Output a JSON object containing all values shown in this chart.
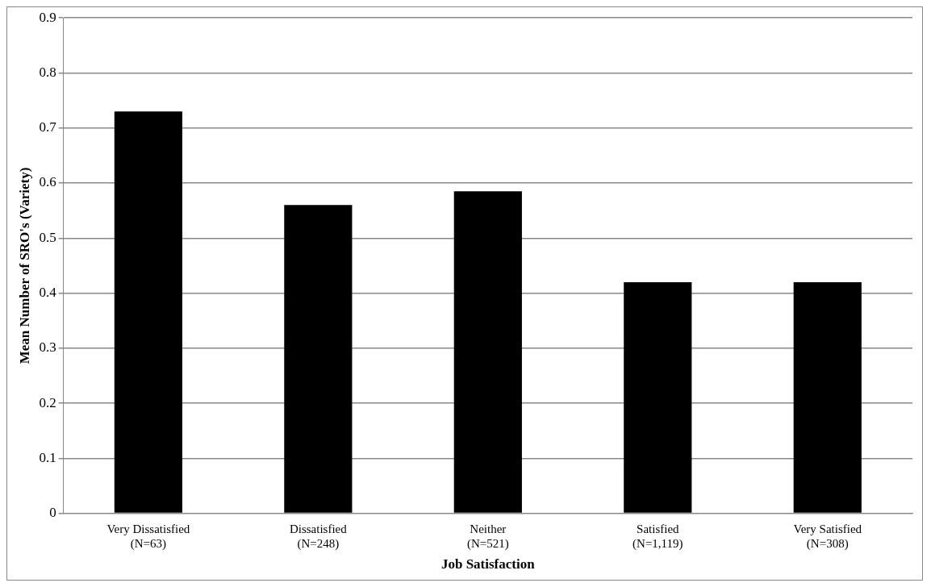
{
  "chart_data": {
    "type": "bar",
    "xlabel": "Job Satisfaction",
    "ylabel": "Mean Number of SRO's (Variety)",
    "categories": [
      "Very Dissatisfied\n(N=63)",
      "Dissatisfied\n(N=248)",
      "Neither\n(N=521)",
      "Satisfied\n(N=1,119)",
      "Very Satisfied\n(N=308)"
    ],
    "values": [
      0.73,
      0.56,
      0.585,
      0.42,
      0.42
    ],
    "color": "#000000",
    "ylim": [
      0,
      0.9
    ],
    "yticks": [
      0,
      0.1,
      0.2,
      0.3,
      0.4,
      0.5,
      0.6,
      0.7,
      0.8,
      0.9
    ],
    "grid": "y",
    "legend": false
  }
}
